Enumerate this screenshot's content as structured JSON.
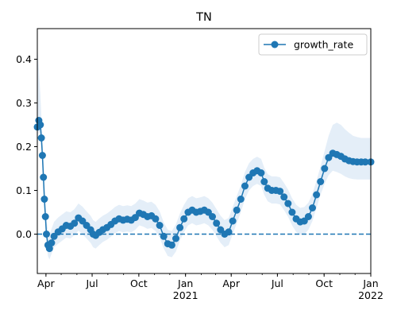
{
  "chart_data": {
    "type": "line",
    "title": "TN",
    "xlabel": "",
    "ylabel": "",
    "xlim": [
      "2020-03-15",
      "2022-01-01"
    ],
    "ylim": [
      -0.09,
      0.47
    ],
    "x_ticks": [
      {
        "date": "2020-04-01",
        "label": "Apr",
        "sublabel": ""
      },
      {
        "date": "2020-07-01",
        "label": "Jul",
        "sublabel": ""
      },
      {
        "date": "2020-10-01",
        "label": "Oct",
        "sublabel": ""
      },
      {
        "date": "2021-01-01",
        "label": "Jan",
        "sublabel": "2021"
      },
      {
        "date": "2021-04-01",
        "label": "Apr",
        "sublabel": ""
      },
      {
        "date": "2021-07-01",
        "label": "Jul",
        "sublabel": ""
      },
      {
        "date": "2021-10-01",
        "label": "Oct",
        "sublabel": ""
      },
      {
        "date": "2022-01-01",
        "label": "Jan",
        "sublabel": "2022"
      }
    ],
    "y_ticks": [
      0.0,
      0.1,
      0.2,
      0.3,
      0.4
    ],
    "y_tick_labels": [
      "0.0",
      "0.1",
      "0.2",
      "0.3",
      "0.4"
    ],
    "legend": {
      "position": "top-right",
      "entries": [
        "growth_rate"
      ]
    },
    "reference_line": {
      "y": 0,
      "style": "dashed"
    },
    "colors": {
      "line": "#1f77b4",
      "band": "#dbe8f5"
    },
    "series": [
      {
        "name": "growth_rate",
        "x": [
          "2020-03-15",
          "2020-03-18",
          "2020-03-21",
          "2020-03-23",
          "2020-03-25",
          "2020-03-27",
          "2020-03-29",
          "2020-03-31",
          "2020-04-02",
          "2020-04-05",
          "2020-04-08",
          "2020-04-12",
          "2020-04-17",
          "2020-04-25",
          "2020-05-03",
          "2020-05-11",
          "2020-05-19",
          "2020-05-27",
          "2020-06-04",
          "2020-06-12",
          "2020-06-20",
          "2020-06-28",
          "2020-07-03",
          "2020-07-08",
          "2020-07-15",
          "2020-07-22",
          "2020-07-30",
          "2020-08-07",
          "2020-08-15",
          "2020-08-23",
          "2020-08-31",
          "2020-09-08",
          "2020-09-16",
          "2020-09-24",
          "2020-10-02",
          "2020-10-10",
          "2020-10-18",
          "2020-10-26",
          "2020-11-03",
          "2020-11-11",
          "2020-11-19",
          "2020-11-27",
          "2020-12-05",
          "2020-12-13",
          "2020-12-21",
          "2020-12-29",
          "2021-01-06",
          "2021-01-14",
          "2021-01-22",
          "2021-01-30",
          "2021-02-07",
          "2021-02-15",
          "2021-02-23",
          "2021-03-03",
          "2021-03-11",
          "2021-03-19",
          "2021-03-27",
          "2021-04-04",
          "2021-04-12",
          "2021-04-20",
          "2021-04-28",
          "2021-05-06",
          "2021-05-14",
          "2021-05-22",
          "2021-05-30",
          "2021-06-05",
          "2021-06-12",
          "2021-06-20",
          "2021-06-28",
          "2021-07-06",
          "2021-07-14",
          "2021-07-22",
          "2021-07-30",
          "2021-08-07",
          "2021-08-15",
          "2021-08-23",
          "2021-08-31",
          "2021-09-08",
          "2021-09-16",
          "2021-09-24",
          "2021-10-02",
          "2021-10-10",
          "2021-10-18",
          "2021-10-26",
          "2021-11-03",
          "2021-11-11",
          "2021-11-19",
          "2021-11-27",
          "2021-12-05",
          "2021-12-13",
          "2021-12-21",
          "2022-01-01"
        ],
        "values": [
          0.245,
          0.26,
          0.25,
          0.22,
          0.18,
          0.13,
          0.08,
          0.04,
          0.0,
          -0.025,
          -0.033,
          -0.02,
          -0.005,
          0.005,
          0.012,
          0.02,
          0.018,
          0.025,
          0.037,
          0.03,
          0.02,
          0.01,
          0.0,
          -0.003,
          0.004,
          0.01,
          0.015,
          0.022,
          0.03,
          0.035,
          0.032,
          0.034,
          0.032,
          0.038,
          0.048,
          0.045,
          0.04,
          0.042,
          0.035,
          0.02,
          -0.005,
          -0.022,
          -0.025,
          -0.01,
          0.015,
          0.035,
          0.05,
          0.055,
          0.05,
          0.052,
          0.055,
          0.05,
          0.04,
          0.025,
          0.01,
          0.0,
          0.005,
          0.03,
          0.055,
          0.08,
          0.11,
          0.13,
          0.14,
          0.145,
          0.14,
          0.12,
          0.105,
          0.1,
          0.1,
          0.098,
          0.085,
          0.07,
          0.05,
          0.035,
          0.028,
          0.03,
          0.04,
          0.06,
          0.09,
          0.12,
          0.15,
          0.175,
          0.185,
          0.182,
          0.178,
          0.172,
          0.168,
          0.166,
          0.165,
          0.165,
          0.165,
          0.165
        ],
        "lower": [
          0.22,
          0.235,
          0.225,
          0.195,
          0.155,
          0.105,
          0.055,
          0.015,
          -0.025,
          -0.05,
          -0.058,
          -0.045,
          -0.03,
          -0.022,
          -0.015,
          -0.008,
          -0.01,
          -0.003,
          0.008,
          0.0,
          -0.01,
          -0.02,
          -0.03,
          -0.033,
          -0.025,
          -0.018,
          -0.013,
          -0.006,
          0.002,
          0.007,
          0.004,
          0.006,
          0.004,
          0.01,
          0.02,
          0.017,
          0.012,
          0.014,
          0.007,
          -0.008,
          -0.033,
          -0.05,
          -0.053,
          -0.04,
          -0.015,
          0.005,
          0.02,
          0.025,
          0.02,
          0.022,
          0.025,
          0.02,
          0.01,
          -0.005,
          -0.02,
          -0.03,
          -0.025,
          0.0,
          0.025,
          0.05,
          0.08,
          0.1,
          0.11,
          0.115,
          0.11,
          0.09,
          0.075,
          0.07,
          0.07,
          0.068,
          0.055,
          0.04,
          0.02,
          0.005,
          -0.002,
          0.0,
          0.01,
          0.03,
          0.06,
          0.09,
          0.115,
          0.135,
          0.145,
          0.142,
          0.138,
          0.132,
          0.128,
          0.126,
          0.125,
          0.125,
          0.125,
          0.125
        ],
        "upper": [
          0.43,
          0.38,
          0.32,
          0.27,
          0.225,
          0.175,
          0.12,
          0.075,
          0.035,
          0.008,
          0.0,
          0.012,
          0.028,
          0.038,
          0.045,
          0.052,
          0.05,
          0.057,
          0.07,
          0.063,
          0.052,
          0.042,
          0.032,
          0.028,
          0.036,
          0.042,
          0.047,
          0.054,
          0.062,
          0.067,
          0.064,
          0.066,
          0.064,
          0.07,
          0.08,
          0.077,
          0.072,
          0.074,
          0.067,
          0.052,
          0.027,
          0.01,
          0.007,
          0.022,
          0.047,
          0.067,
          0.082,
          0.087,
          0.082,
          0.084,
          0.087,
          0.082,
          0.072,
          0.057,
          0.042,
          0.032,
          0.037,
          0.062,
          0.087,
          0.112,
          0.142,
          0.162,
          0.172,
          0.177,
          0.172,
          0.152,
          0.137,
          0.132,
          0.132,
          0.13,
          0.117,
          0.102,
          0.082,
          0.067,
          0.06,
          0.062,
          0.072,
          0.092,
          0.122,
          0.155,
          0.19,
          0.225,
          0.25,
          0.255,
          0.25,
          0.24,
          0.232,
          0.225,
          0.222,
          0.22,
          0.22,
          0.22
        ]
      }
    ]
  }
}
